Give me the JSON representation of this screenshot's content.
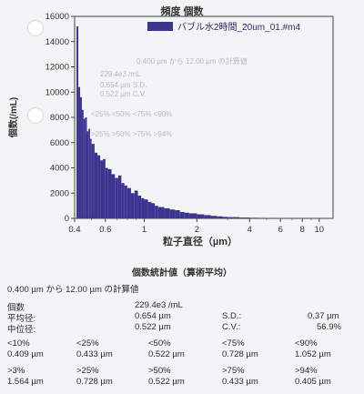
{
  "chart_data": {
    "type": "bar",
    "title": "頻度 個数",
    "legend": "バブル水2時間_20um_01.#m4",
    "ylabel": "個数(/mL)",
    "xlabel": "粒子直径（µm）",
    "x_scale": "log",
    "xlim": [
      0.4,
      12
    ],
    "ylim": [
      0,
      16000
    ],
    "yticks": [
      0,
      2000,
      4000,
      6000,
      8000,
      10000,
      12000,
      14000,
      16000
    ],
    "ytick_labels": [
      "0",
      "2000",
      "4000",
      "6000",
      "8000",
      "10000",
      "12000",
      "14000",
      "16000"
    ],
    "xticks": [
      0.4,
      0.6,
      1,
      2,
      4,
      6,
      8,
      10
    ],
    "xtick_labels": [
      "0.4",
      "0.6",
      "1",
      "2",
      "4",
      "6",
      "8",
      "10"
    ],
    "grid": false,
    "legend_position": "top-right",
    "series_color": "#3d3490",
    "x": [
      0.41,
      0.42,
      0.43,
      0.44,
      0.45,
      0.46,
      0.47,
      0.48,
      0.49,
      0.5,
      0.52,
      0.54,
      0.56,
      0.58,
      0.6,
      0.62,
      0.65,
      0.68,
      0.71,
      0.74,
      0.77,
      0.8,
      0.84,
      0.88,
      0.92,
      0.96,
      1.0,
      1.05,
      1.1,
      1.15,
      1.2,
      1.3,
      1.4,
      1.5,
      1.6,
      1.7,
      1.8,
      2.0,
      2.2,
      2.4,
      2.6,
      2.8,
      3.0,
      3.5,
      4.0,
      4.5,
      5.0,
      6.0,
      7.0
    ],
    "values": [
      15200,
      10400,
      9600,
      8600,
      7900,
      8000,
      6900,
      7100,
      6300,
      5900,
      5200,
      5000,
      4600,
      4700,
      4000,
      3900,
      3500,
      3200,
      3400,
      2800,
      2600,
      2400,
      2000,
      2200,
      1800,
      1600,
      1500,
      1300,
      1200,
      1000,
      900,
      800,
      700,
      650,
      500,
      450,
      400,
      320,
      260,
      200,
      160,
      120,
      100,
      70,
      50,
      40,
      30,
      20,
      10
    ]
  },
  "stats": {
    "title": "個数統計値（算術平均）",
    "range_text": "0.400 µm から 12.00 µm の計算値",
    "count_label": "個数",
    "count_value": "229.4e3 /mL",
    "mean_label": "平均径:",
    "mean_value": "0.654 µm",
    "sd_label": "S.D.:",
    "sd_value": "0.37 µm",
    "median_label": "中位径:",
    "median_value": "0.522 µm",
    "cv_label": "C.V.:",
    "cv_value": "56.9%",
    "lt_labels": [
      "<10%",
      "<25%",
      "<50%",
      "<75%",
      "<90%"
    ],
    "lt_values": [
      "0.409 µm",
      "0.433 µm",
      "0.522 µm",
      "0.728 µm",
      "1.052 µm"
    ],
    "gt_labels": [
      ">3%",
      ">25%",
      ">50%",
      ">75%",
      ">94%"
    ],
    "gt_values": [
      "1.564 µm",
      "0.728 µm",
      "0.522 µm",
      "0.433 µm",
      "0.405 µm"
    ]
  }
}
